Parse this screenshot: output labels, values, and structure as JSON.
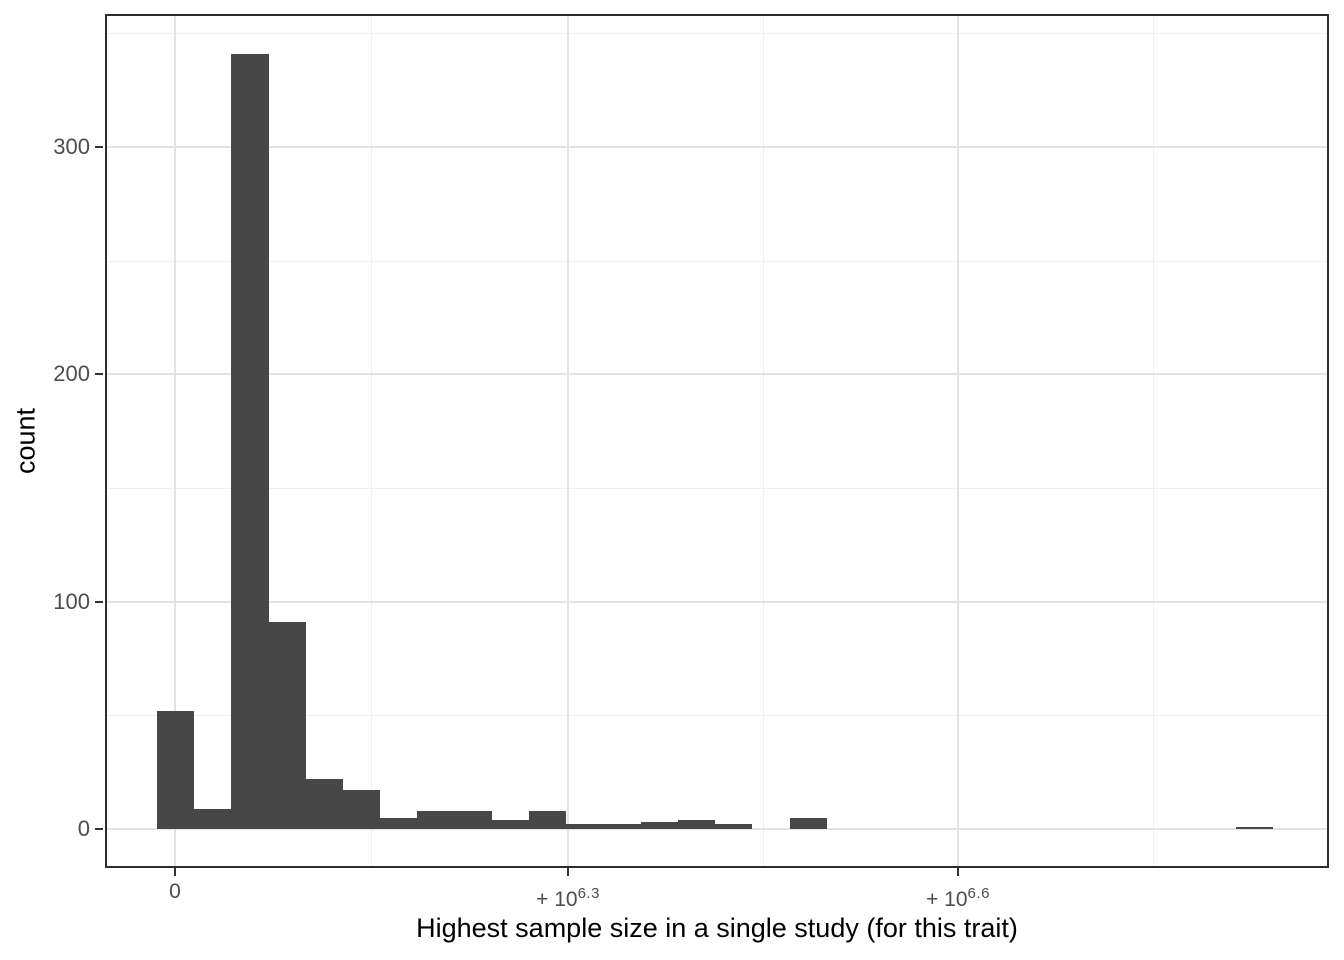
{
  "figure": {
    "x_axis_title": "Highest sample size in a single study (for this trait)",
    "y_axis_title": "count"
  },
  "chart_data": {
    "type": "histogram",
    "title": "",
    "xlabel": "Highest sample size in a single study (for this trait)",
    "ylabel": "count",
    "x_scale_note": "pseudo-log sample-size axis; labeled ticks at 0, +10^6.3, +10^6.6",
    "legend": "none",
    "bars": {
      "bin_counts": [
        52,
        9,
        341,
        91,
        22,
        17,
        5,
        8,
        8,
        4,
        8,
        2,
        2,
        3,
        4,
        2,
        0,
        5,
        0,
        0,
        0,
        0,
        0,
        0,
        0,
        0,
        0,
        0,
        0,
        1
      ],
      "first_bin_left_frac": 0.0425,
      "bin_width_frac": 0.0304
    },
    "x_axis": {
      "ticks": [
        {
          "base": "0",
          "exp": "",
          "frac": 0.0572
        },
        {
          "base": "+ 10",
          "exp": "6.3",
          "frac": 0.3783
        },
        {
          "base": "+ 10",
          "exp": "6.6",
          "frac": 0.6969
        }
      ],
      "minor_fracs": [
        0.2177,
        0.5376,
        0.8566
      ]
    },
    "y_axis": {
      "ticks": [
        0,
        100,
        200,
        300
      ],
      "minor_ticks": [
        50,
        150,
        250,
        350
      ],
      "ylim": [
        0,
        358
      ],
      "zero_frac": 0.9543,
      "frac_per_count": 0.0026619
    },
    "grid": {
      "major": true,
      "minor": true
    }
  },
  "style": {
    "bar_fill": "#474747",
    "panel_border": "#2d2d2d",
    "grid_major": "#e3e3e3",
    "grid_minor": "#f1f1f1",
    "tick_color": "#333333",
    "tick_label_color": "#4d4d4d",
    "title_color": "#000000",
    "background": "#ffffff"
  }
}
